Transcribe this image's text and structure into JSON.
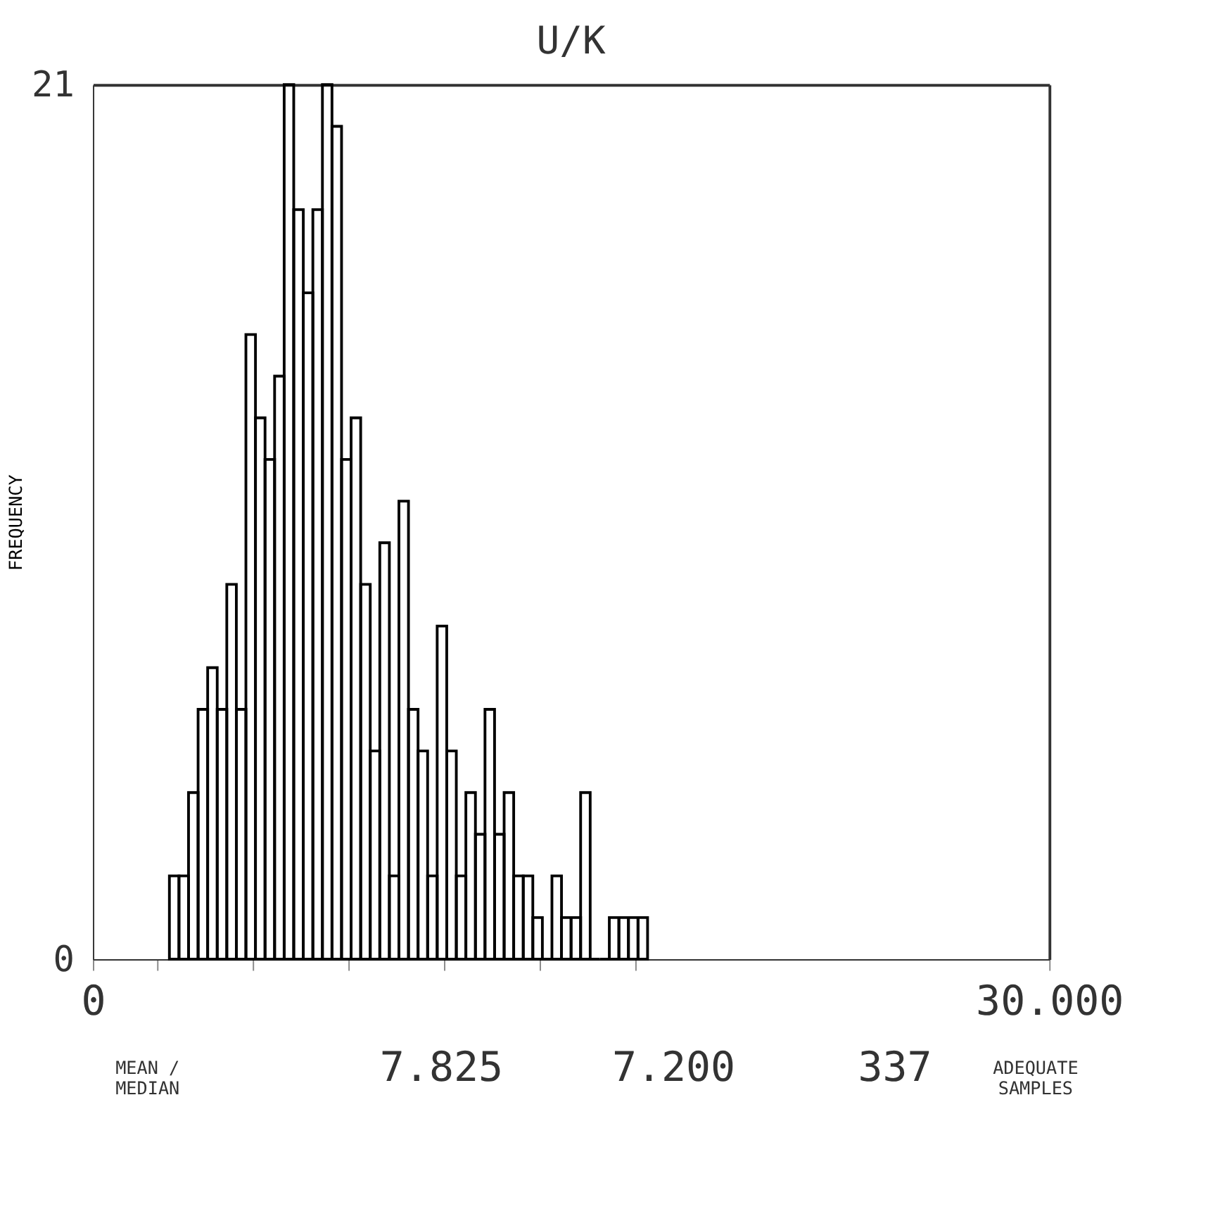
{
  "chart_data": {
    "type": "histogram",
    "title": "U/K",
    "ylabel": "FREQUENCY",
    "bins": [
      2.4,
      2.7,
      3.0,
      3.3,
      3.6,
      3.9,
      4.2,
      4.5,
      4.8,
      5.1,
      5.4,
      5.7,
      6.0,
      6.3,
      6.6,
      6.9,
      7.2,
      7.5,
      7.8,
      8.1,
      8.4,
      8.7,
      9.0,
      9.3,
      9.6,
      9.9,
      10.2,
      10.5,
      10.8,
      11.1,
      11.4,
      11.7,
      12.0,
      12.3,
      12.6,
      12.9,
      13.2,
      13.5,
      13.8,
      14.1,
      14.4,
      14.7,
      15.0,
      15.3,
      15.6,
      15.9,
      16.2,
      16.5,
      16.8,
      17.1,
      17.4
    ],
    "values": [
      2,
      2,
      4,
      6,
      7,
      6,
      9,
      6,
      15,
      13,
      12,
      14,
      21,
      18,
      16,
      18,
      21,
      20,
      12,
      13,
      9,
      5,
      10,
      2,
      11,
      6,
      5,
      2,
      8,
      5,
      2,
      4,
      3,
      6,
      3,
      4,
      2,
      2,
      1,
      0,
      2,
      1,
      1,
      4,
      0,
      0,
      1,
      1,
      1,
      1
    ],
    "color": "#000000",
    "xlim": [
      0,
      30
    ],
    "xticks": [
      {
        "value": 0,
        "label": "0"
      },
      {
        "value": 2,
        "label": null
      },
      {
        "value": 5,
        "label": null
      },
      {
        "value": 8,
        "label": null
      },
      {
        "value": 11,
        "label": null
      },
      {
        "value": 14,
        "label": null
      },
      {
        "value": 17,
        "label": null
      },
      {
        "value": 30,
        "label": "30.000"
      }
    ],
    "ylim": [
      0,
      21
    ],
    "yticks": [
      0,
      21
    ],
    "grid": false,
    "annotations": [
      "MEAN /\nMEDIAN",
      "7.825",
      "7.200",
      "337",
      "ADEQUATE\nSAMPLES"
    ]
  }
}
